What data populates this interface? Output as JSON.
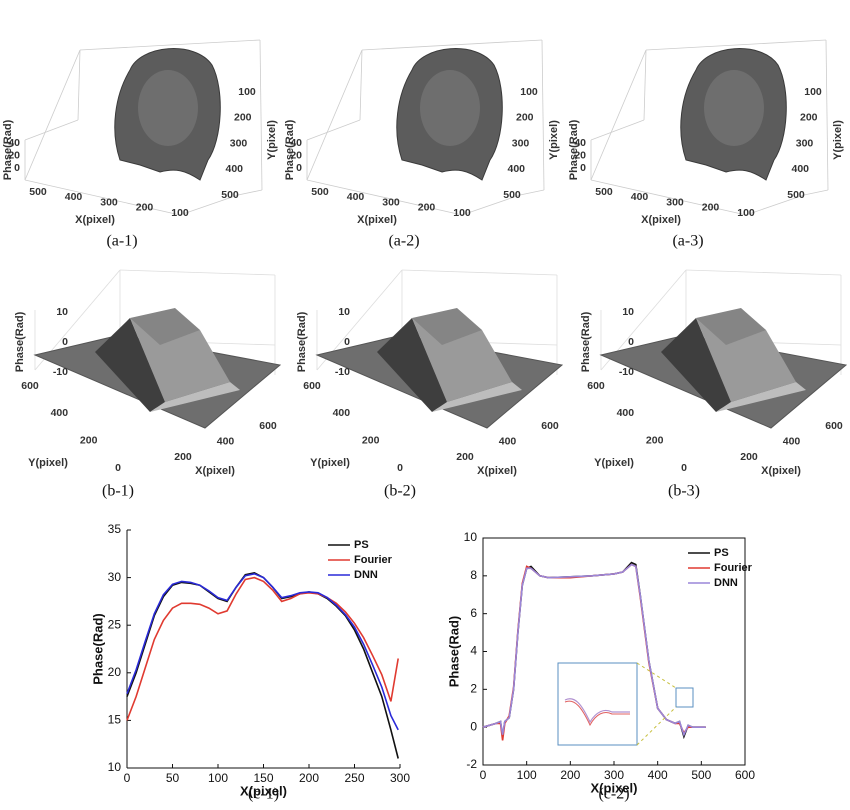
{
  "surface_panels": [
    {
      "caption": "(a-1)",
      "z_label": "Phase(Rad)",
      "x_label": "X(pixel)",
      "y_label": "Y(pixel)",
      "z_ticks": [
        0,
        20,
        40
      ],
      "x_ticks": [
        500,
        400,
        300,
        200,
        100
      ],
      "y_ticks": [
        100,
        200,
        300,
        400,
        500
      ]
    },
    {
      "caption": "(a-2)",
      "z_label": "Phase(Rad)",
      "x_label": "X(pixel)",
      "y_label": "Y(pixel)",
      "z_ticks": [
        0,
        20,
        40
      ],
      "x_ticks": [
        500,
        400,
        300,
        200,
        100
      ],
      "y_ticks": [
        100,
        200,
        300,
        400,
        500
      ]
    },
    {
      "caption": "(a-3)",
      "z_label": "Phase(Rad)",
      "x_label": "X(pixel)",
      "y_label": "Y(pixel)",
      "z_ticks": [
        0,
        20,
        40
      ],
      "x_ticks": [
        500,
        400,
        300,
        200,
        100
      ],
      "y_ticks": [
        100,
        200,
        300,
        400,
        500
      ]
    },
    {
      "caption": "(b-1)",
      "z_label": "Phase(Rad)",
      "x_label": "X(pixel)",
      "y_label": "Y(pixel)",
      "z_ticks": [
        -10,
        0,
        10
      ],
      "x_ticks": [
        200,
        400,
        600
      ],
      "y_ticks": [
        0,
        200,
        400,
        600
      ]
    },
    {
      "caption": "(b-2)",
      "z_label": "Phase(Rad)",
      "x_label": "X(pixel)",
      "y_label": "Y(pixel)",
      "z_ticks": [
        -10,
        0,
        10
      ],
      "x_ticks": [
        200,
        400,
        600
      ],
      "y_ticks": [
        0,
        200,
        400,
        600
      ]
    },
    {
      "caption": "(b-3)",
      "z_label": "Phase(Rad)",
      "x_label": "X(pixel)",
      "y_label": "Y(pixel)",
      "z_ticks": [
        -10,
        0,
        10
      ],
      "x_ticks": [
        200,
        400,
        600
      ],
      "y_ticks": [
        0,
        200,
        400,
        600
      ]
    }
  ],
  "chart_data": [
    {
      "type": "line",
      "caption": "(c-1)",
      "x_label": "X(pixel)",
      "y_label": "Phase(Rad)",
      "x": [
        0,
        10,
        20,
        30,
        40,
        50,
        60,
        70,
        80,
        90,
        100,
        110,
        120,
        130,
        140,
        150,
        160,
        170,
        180,
        190,
        200,
        210,
        220,
        230,
        240,
        250,
        260,
        270,
        280,
        290,
        298
      ],
      "xlim": [
        0,
        300
      ],
      "xticks": [
        0,
        50,
        100,
        150,
        200,
        250,
        300
      ],
      "ylim": [
        10,
        35
      ],
      "yticks": [
        10,
        15,
        20,
        25,
        30,
        35
      ],
      "series": [
        {
          "name": "PS",
          "color": "#111111",
          "values": [
            17.5,
            20,
            23,
            26,
            28,
            29.2,
            29.5,
            29.4,
            29.2,
            28.5,
            27.8,
            27.5,
            29,
            30.3,
            30.5,
            30,
            29,
            27.8,
            28,
            28.3,
            28.5,
            28.3,
            27.8,
            27,
            26,
            24.5,
            22.5,
            20,
            17.5,
            14,
            11
          ]
        },
        {
          "name": "Fourier",
          "color": "#e03a30",
          "values": [
            15,
            17.5,
            20.5,
            23.5,
            25.5,
            26.8,
            27.3,
            27.3,
            27.2,
            26.8,
            26.2,
            26.5,
            28.3,
            29.8,
            30,
            29.6,
            28.7,
            27.5,
            27.8,
            28.3,
            28.4,
            28.3,
            27.9,
            27.3,
            26.4,
            25.2,
            23.7,
            21.8,
            19.8,
            17,
            21.5
          ]
        },
        {
          "name": "DNN",
          "color": "#2a2ad8",
          "values": [
            17.8,
            20.3,
            23.3,
            26.2,
            28.2,
            29.3,
            29.6,
            29.5,
            29.2,
            28.6,
            27.9,
            27.6,
            29,
            30.2,
            30.4,
            30,
            29,
            27.9,
            28.1,
            28.4,
            28.5,
            28.4,
            27.9,
            27.1,
            26.1,
            24.8,
            23,
            20.8,
            18.5,
            15.5,
            14
          ]
        }
      ]
    },
    {
      "type": "line",
      "caption": "(c-2)",
      "x_label": "X(pixel)",
      "y_label": "Phase(Rad)",
      "x": [
        0,
        30,
        40,
        45,
        50,
        60,
        70,
        80,
        90,
        100,
        110,
        130,
        150,
        200,
        250,
        300,
        320,
        340,
        350,
        360,
        380,
        400,
        420,
        440,
        450,
        460,
        470,
        480,
        500,
        510
      ],
      "xlim": [
        0,
        600
      ],
      "xticks": [
        0,
        100,
        200,
        300,
        400,
        500,
        600
      ],
      "ylim": [
        -2,
        10
      ],
      "yticks": [
        -2,
        0,
        2,
        4,
        6,
        8,
        10
      ],
      "series": [
        {
          "name": "PS",
          "color": "#111111",
          "values": [
            0,
            0.2,
            0.3,
            -0.5,
            0.3,
            0.5,
            2,
            5,
            7.5,
            8.4,
            8.5,
            8,
            7.9,
            7.95,
            8,
            8.1,
            8.2,
            8.7,
            8.6,
            7,
            3.5,
            1,
            0.4,
            0.2,
            0.3,
            -0.5,
            0.1,
            0,
            0,
            0
          ]
        },
        {
          "name": "Fourier",
          "color": "#e03a30",
          "values": [
            0,
            0.2,
            0.2,
            -0.7,
            0.2,
            0.6,
            2.1,
            5.1,
            7.6,
            8.5,
            8.4,
            8,
            7.9,
            7.9,
            8,
            8.1,
            8.2,
            8.6,
            8.5,
            6.9,
            3.4,
            1,
            0.4,
            0.2,
            0.2,
            -0.3,
            0,
            0,
            0,
            0
          ]
        },
        {
          "name": "DNN",
          "color": "#9a86d8",
          "values": [
            0,
            0.2,
            0.3,
            -0.4,
            0.3,
            0.5,
            2,
            5,
            7.5,
            8.4,
            8.4,
            8,
            7.9,
            7.95,
            8,
            8.1,
            8.2,
            8.6,
            8.5,
            7,
            3.5,
            1,
            0.4,
            0.2,
            0.3,
            -0.4,
            0.1,
            0,
            0,
            0
          ]
        }
      ]
    }
  ]
}
